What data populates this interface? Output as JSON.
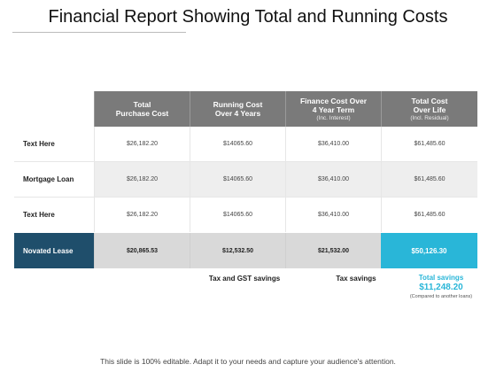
{
  "title": "Financial Report Showing Total and Running Costs",
  "header": {
    "col1": {
      "line1": "Total",
      "line2": "Purchase Cost"
    },
    "col2": {
      "line1": "Running Cost",
      "line2": "Over 4 Years"
    },
    "col3": {
      "line1": "Finance Cost Over",
      "line2": "4 Year Term",
      "sub": "(Inc. Interest)"
    },
    "col4": {
      "line1": "Total Cost",
      "line2": "Over Life",
      "sub": "(Incl. Residual)"
    }
  },
  "rows": [
    {
      "label": "Text Here",
      "values": [
        "$26,182.20",
        "$14065.60",
        "$36,410.00",
        "$61,485.60"
      ]
    },
    {
      "label": "Mortgage Loan",
      "values": [
        "$26,182.20",
        "$14065.60",
        "$36,410.00",
        "$61,485.60"
      ]
    },
    {
      "label": "Text Here",
      "values": [
        "$26,182.20",
        "$14065.60",
        "$36,410.00",
        "$61,485.60"
      ]
    }
  ],
  "novated": {
    "label": "Novated Lease",
    "values": [
      "$20,865.53",
      "$12,532.50",
      "$21,532.00",
      "$50,126.30"
    ]
  },
  "savings": {
    "tax_gst": "Tax and GST savings",
    "tax": "Tax savings",
    "total_label": "Total savings",
    "total_value": "$11,248.20",
    "note": "(Compared to another loans)"
  },
  "footer": "This slide is 100% editable. Adapt it to your needs and capture your audience's attention.",
  "colors": {
    "header_bg": "#7a7a7a",
    "novated_label_bg": "#1f4e6b",
    "accent": "#29b6d8"
  }
}
